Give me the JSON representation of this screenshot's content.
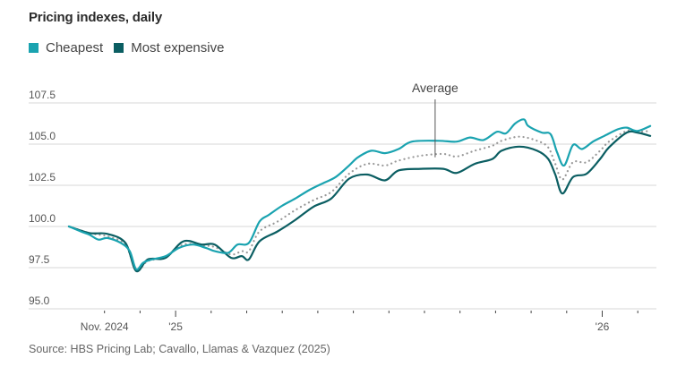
{
  "chart_data": {
    "type": "line",
    "title": "Pricing indexes, daily",
    "xlabel": "",
    "ylabel": "",
    "x_unit": "months since Oct. 1, 2024",
    "xlim": [
      0,
      16.4
    ],
    "ylim": [
      95,
      108.5
    ],
    "yticks": [
      {
        "value": 95.0,
        "label": "95.0"
      },
      {
        "value": 97.5,
        "label": "97.5"
      },
      {
        "value": 100.0,
        "label": "100.0"
      },
      {
        "value": 102.5,
        "label": "102.5"
      },
      {
        "value": 105.0,
        "label": "105.0"
      },
      {
        "value": 107.5,
        "label": "107.5"
      }
    ],
    "xticks": [
      {
        "value": 1,
        "label": "Nov. 2024",
        "major": false
      },
      {
        "value": 2,
        "label": "",
        "major": false
      },
      {
        "value": 3,
        "label": "'25",
        "major": true
      },
      {
        "value": 4,
        "label": "",
        "major": false
      },
      {
        "value": 5,
        "label": "",
        "major": false
      },
      {
        "value": 6,
        "label": "",
        "major": false
      },
      {
        "value": 7,
        "label": "",
        "major": false
      },
      {
        "value": 8,
        "label": "",
        "major": false
      },
      {
        "value": 9,
        "label": "",
        "major": false
      },
      {
        "value": 10,
        "label": "",
        "major": false
      },
      {
        "value": 11,
        "label": "",
        "major": false
      },
      {
        "value": 12,
        "label": "",
        "major": false
      },
      {
        "value": 13,
        "label": "",
        "major": false
      },
      {
        "value": 14,
        "label": "",
        "major": false
      },
      {
        "value": 15,
        "label": "'26",
        "major": true
      },
      {
        "value": 16,
        "label": "",
        "major": false
      }
    ],
    "grid": true,
    "legend_position": "top-left",
    "legend": [
      {
        "name": "Cheapest",
        "color": "#1aa3b0"
      },
      {
        "name": "Most expensive",
        "color": "#0b5e62"
      }
    ],
    "annotations": [
      {
        "text": "Average",
        "x": 10.3,
        "y": 104.2,
        "series": "Average"
      }
    ],
    "series": [
      {
        "name": "Cheapest",
        "color": "#1aa3b0",
        "style": "solid",
        "x": [
          0,
          0.33,
          0.58,
          0.83,
          1.08,
          1.46,
          1.71,
          1.89,
          2.09,
          2.34,
          2.72,
          3.1,
          3.48,
          3.85,
          4.1,
          4.48,
          4.74,
          5.06,
          5.36,
          5.62,
          5.99,
          6.37,
          6.75,
          7.12,
          7.5,
          7.88,
          8.13,
          8.51,
          8.89,
          9.27,
          9.65,
          10.4,
          10.91,
          11.28,
          11.66,
          12.04,
          12.29,
          12.55,
          12.8,
          12.92,
          13.3,
          13.55,
          13.73,
          13.93,
          14.18,
          14.43,
          14.74,
          15.06,
          15.44,
          15.69,
          15.99,
          16.35
        ],
        "values": [
          100.0,
          99.7,
          99.5,
          99.2,
          99.3,
          99.0,
          98.5,
          97.4,
          97.8,
          98.0,
          98.2,
          98.7,
          98.9,
          98.7,
          98.5,
          98.4,
          98.9,
          99.0,
          100.3,
          100.7,
          101.25,
          101.7,
          102.2,
          102.6,
          103.0,
          103.7,
          104.2,
          104.6,
          104.45,
          104.7,
          105.15,
          105.2,
          105.15,
          105.4,
          105.25,
          105.75,
          105.65,
          106.25,
          106.5,
          106.1,
          105.7,
          105.6,
          104.5,
          103.7,
          104.95,
          104.7,
          105.15,
          105.5,
          105.9,
          106.0,
          105.8,
          106.1
        ]
      },
      {
        "name": "Most expensive",
        "color": "#0b5e62",
        "style": "solid",
        "x": [
          0,
          0.58,
          1.08,
          1.59,
          1.89,
          2.22,
          2.72,
          3.22,
          3.73,
          4.1,
          4.56,
          4.86,
          5.06,
          5.36,
          5.87,
          6.37,
          6.88,
          7.38,
          7.88,
          8.39,
          8.89,
          9.27,
          9.9,
          10.53,
          10.91,
          11.41,
          11.91,
          12.17,
          12.67,
          13.17,
          13.48,
          13.68,
          13.88,
          14.18,
          14.56,
          14.94,
          15.19,
          15.69,
          15.99,
          16.35
        ],
        "values": [
          100.0,
          99.6,
          99.55,
          99.0,
          97.3,
          98.0,
          98.1,
          99.1,
          98.9,
          98.9,
          98.1,
          98.2,
          98.0,
          99.1,
          99.7,
          100.4,
          101.2,
          101.7,
          102.9,
          103.15,
          102.8,
          103.4,
          103.5,
          103.5,
          103.25,
          103.8,
          104.1,
          104.6,
          104.85,
          104.6,
          104.1,
          103.15,
          102.0,
          103.0,
          103.2,
          104.1,
          104.8,
          105.7,
          105.7,
          105.5
        ]
      },
      {
        "name": "Average",
        "color": "#999999",
        "style": "dotted",
        "x": [
          0,
          0.58,
          1.08,
          1.59,
          1.89,
          2.22,
          2.72,
          3.22,
          3.73,
          4.1,
          4.56,
          4.86,
          5.06,
          5.36,
          5.87,
          6.37,
          6.88,
          7.38,
          7.88,
          8.39,
          8.89,
          9.27,
          9.9,
          10.53,
          10.91,
          11.41,
          11.91,
          12.17,
          12.67,
          13.17,
          13.48,
          13.68,
          13.88,
          14.18,
          14.56,
          14.94,
          15.19,
          15.69,
          15.99,
          16.35
        ],
        "values": [
          100.0,
          99.6,
          99.4,
          98.9,
          97.35,
          97.9,
          98.15,
          98.9,
          98.85,
          98.75,
          98.3,
          98.5,
          98.5,
          99.7,
          100.3,
          101.0,
          101.6,
          102.1,
          103.2,
          103.8,
          103.7,
          104.0,
          104.3,
          104.4,
          104.25,
          104.6,
          104.9,
          105.2,
          105.45,
          105.2,
          104.8,
          103.8,
          102.85,
          103.9,
          103.9,
          104.6,
          105.15,
          105.8,
          105.75,
          105.8
        ]
      }
    ]
  },
  "source_text": "Source: HBS Pricing Lab; Cavallo, Llamas & Vazquez (2025)"
}
